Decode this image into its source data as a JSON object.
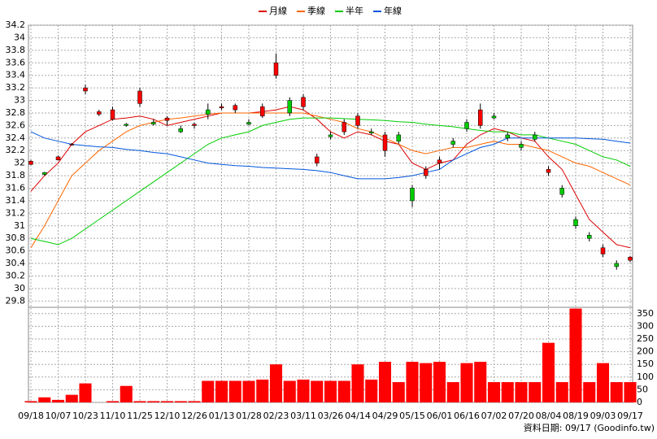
{
  "chart_data": [
    {
      "type": "candlestick",
      "legend": "top",
      "grid": true,
      "up_color": "#ff0000",
      "down_color": "#00cc00",
      "categories": [
        "09/18",
        null,
        "10/07",
        null,
        "10/23",
        null,
        "11/10",
        null,
        "11/25",
        null,
        "12/10",
        null,
        "12/26",
        null,
        "01/13",
        null,
        "01/28",
        null,
        "02/23",
        null,
        "03/11",
        null,
        "03/26",
        null,
        "04/14",
        null,
        "04/29",
        null,
        "05/15",
        null,
        "06/01",
        null,
        "06/16",
        null,
        "07/02",
        null,
        "07/20",
        null,
        "08/04",
        null,
        "08/19",
        null,
        "09/03",
        null,
        "09/17"
      ],
      "open": [
        31.98,
        31.85,
        32.05,
        32.3,
        33.15,
        32.78,
        32.7,
        32.62,
        32.95,
        32.65,
        32.68,
        32.55,
        32.6,
        32.85,
        32.88,
        32.85,
        32.65,
        32.75,
        33.4,
        33.0,
        32.9,
        32.0,
        32.45,
        32.5,
        32.6,
        32.5,
        32.2,
        32.45,
        31.6,
        31.8,
        32.0,
        32.35,
        32.65,
        32.6,
        32.75,
        32.45,
        32.3,
        32.45,
        31.85,
        31.6,
        31.1,
        30.85,
        30.55,
        30.4,
        30.45
      ],
      "high": [
        32.05,
        31.86,
        32.12,
        32.32,
        33.25,
        32.85,
        32.9,
        32.64,
        33.2,
        32.7,
        32.75,
        32.6,
        32.65,
        32.95,
        32.95,
        32.95,
        32.7,
        32.95,
        33.75,
        33.05,
        33.1,
        32.15,
        32.5,
        32.7,
        32.8,
        32.55,
        32.5,
        32.5,
        31.65,
        31.95,
        32.1,
        32.4,
        32.7,
        32.95,
        32.8,
        32.5,
        32.35,
        32.5,
        31.95,
        31.65,
        31.15,
        30.9,
        30.7,
        30.45,
        30.52
      ],
      "low": [
        31.97,
        31.8,
        32.04,
        32.28,
        33.1,
        32.75,
        32.68,
        32.58,
        32.9,
        32.6,
        32.6,
        32.48,
        32.55,
        32.7,
        32.85,
        32.8,
        32.6,
        32.72,
        33.35,
        32.75,
        32.85,
        31.95,
        32.38,
        32.45,
        32.55,
        32.45,
        32.1,
        32.3,
        31.3,
        31.75,
        31.9,
        32.25,
        32.5,
        32.55,
        32.7,
        32.35,
        32.2,
        32.35,
        31.8,
        31.45,
        30.95,
        30.75,
        30.5,
        30.3,
        30.42
      ],
      "close": [
        32.03,
        31.82,
        32.1,
        32.3,
        33.2,
        32.82,
        32.85,
        32.6,
        33.15,
        32.62,
        32.72,
        32.5,
        32.62,
        32.78,
        32.9,
        32.92,
        32.62,
        32.9,
        33.6,
        32.8,
        33.05,
        32.1,
        32.42,
        32.65,
        32.75,
        32.48,
        32.45,
        32.35,
        31.4,
        31.9,
        32.05,
        32.3,
        32.55,
        32.85,
        32.72,
        32.4,
        32.25,
        32.38,
        31.9,
        31.5,
        31.0,
        30.8,
        30.65,
        30.35,
        30.5
      ],
      "series": [
        {
          "name": "月線",
          "color": "#dd0000",
          "values": [
            31.55,
            31.8,
            32.0,
            32.3,
            32.5,
            32.6,
            32.7,
            32.72,
            32.75,
            32.7,
            32.6,
            32.65,
            32.7,
            32.75,
            32.8,
            32.8,
            32.8,
            32.82,
            32.85,
            32.9,
            32.85,
            32.7,
            32.5,
            32.4,
            32.5,
            32.45,
            32.35,
            32.3,
            32.0,
            31.9,
            32.0,
            32.05,
            32.3,
            32.45,
            32.55,
            32.5,
            32.4,
            32.35,
            32.1,
            31.9,
            31.5,
            31.1,
            30.9,
            30.7,
            30.65
          ]
        },
        {
          "name": "季線",
          "color": "#ff6600",
          "values": [
            30.65,
            31.0,
            31.4,
            31.8,
            32.0,
            32.2,
            32.35,
            32.5,
            32.6,
            32.65,
            32.7,
            32.72,
            32.75,
            32.78,
            32.8,
            32.8,
            32.8,
            32.8,
            32.8,
            32.8,
            32.8,
            32.75,
            32.7,
            32.65,
            32.55,
            32.5,
            32.4,
            32.3,
            32.2,
            32.15,
            32.2,
            32.25,
            32.25,
            32.3,
            32.35,
            32.3,
            32.3,
            32.25,
            32.2,
            32.1,
            32.0,
            31.95,
            31.85,
            31.75,
            31.65
          ]
        },
        {
          "name": "半年",
          "color": "#00cc00",
          "values": [
            30.8,
            30.75,
            30.7,
            30.8,
            30.95,
            31.1,
            31.25,
            31.4,
            31.55,
            31.7,
            31.85,
            32.0,
            32.15,
            32.3,
            32.4,
            32.45,
            32.5,
            32.6,
            32.65,
            32.7,
            32.72,
            32.72,
            32.72,
            32.71,
            32.7,
            32.69,
            32.68,
            32.66,
            32.65,
            32.62,
            32.6,
            32.58,
            32.55,
            32.52,
            32.5,
            32.5,
            32.45,
            32.45,
            32.4,
            32.35,
            32.3,
            32.2,
            32.1,
            32.05,
            31.95
          ]
        },
        {
          "name": "年線",
          "color": "#0055dd",
          "values": [
            32.5,
            32.4,
            32.35,
            32.3,
            32.28,
            32.26,
            32.25,
            32.22,
            32.2,
            32.17,
            32.15,
            32.1,
            32.05,
            32.0,
            31.98,
            31.96,
            31.95,
            31.93,
            31.92,
            31.91,
            31.9,
            31.88,
            31.85,
            31.8,
            31.75,
            31.75,
            31.75,
            31.77,
            31.8,
            31.85,
            31.9,
            32.05,
            32.15,
            32.25,
            32.3,
            32.4,
            32.4,
            32.4,
            32.4,
            32.4,
            32.4,
            32.39,
            32.38,
            32.35,
            32.32
          ]
        }
      ],
      "ylim": [
        29.7,
        34.2
      ],
      "yticks": [
        29.8,
        30,
        30.2,
        30.4,
        30.6,
        30.8,
        31,
        31.2,
        31.4,
        31.6,
        31.8,
        32,
        32.2,
        32.4,
        32.6,
        32.8,
        33,
        33.2,
        33.4,
        33.6,
        33.8,
        34,
        34.2
      ]
    },
    {
      "type": "bar",
      "color": "#ff0000",
      "values": [
        5,
        20,
        10,
        30,
        75,
        0,
        5,
        65,
        5,
        5,
        5,
        5,
        5,
        85,
        85,
        85,
        85,
        90,
        150,
        85,
        90,
        85,
        85,
        85,
        150,
        90,
        160,
        80,
        160,
        155,
        160,
        80,
        155,
        160,
        80,
        80,
        80,
        80,
        235,
        80,
        370,
        80,
        155,
        80,
        80
      ],
      "y2lim": [
        0,
        375
      ],
      "y2ticks": [
        0,
        50,
        100,
        150,
        200,
        250,
        300,
        350
      ],
      "footer": "資料日期: 09/17 (Goodinfo.tw)"
    }
  ]
}
